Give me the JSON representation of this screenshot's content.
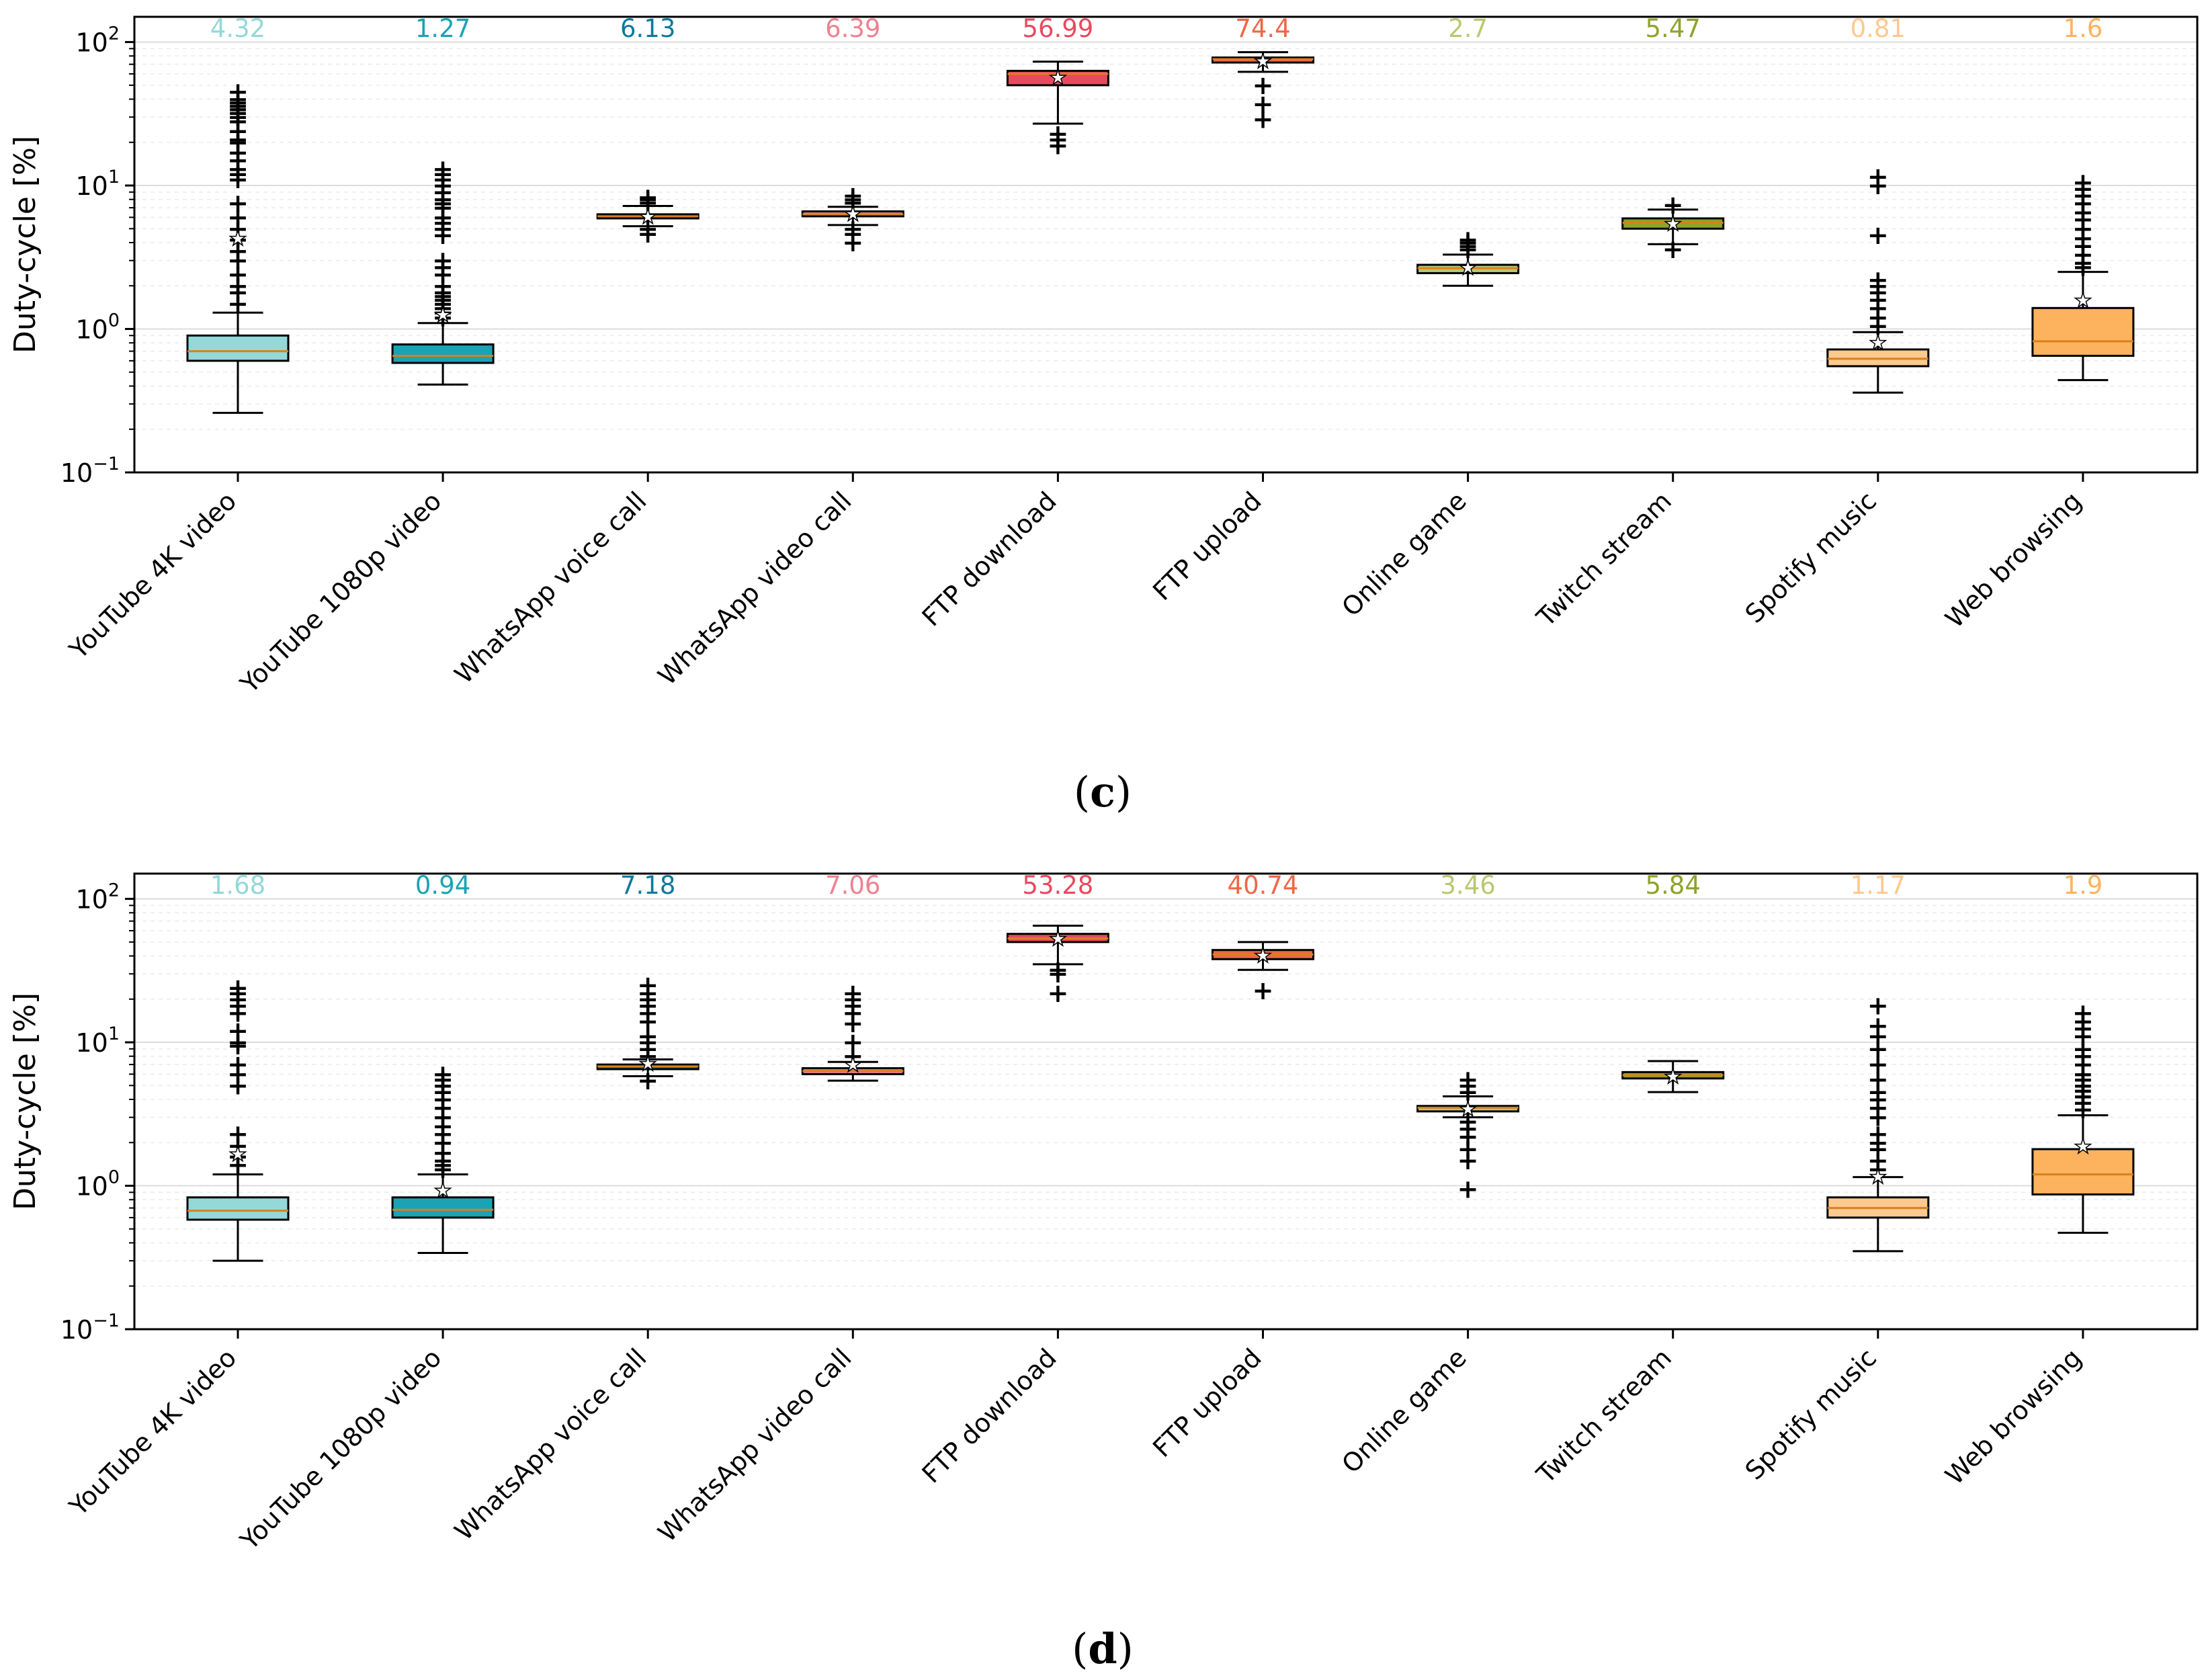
{
  "figure": {
    "panels": [
      "c",
      "d"
    ]
  },
  "chart_data": [
    {
      "type": "boxplot",
      "panel_caption": "(c)",
      "panel_letter": "c",
      "ylabel": "Duty-cycle [%]",
      "yscale": "log",
      "ylim": [
        0.1,
        150
      ],
      "ytick_labels": [
        {
          "base": "10",
          "exp": "−1",
          "value": 0.1
        },
        {
          "base": "10",
          "exp": "0",
          "value": 1
        },
        {
          "base": "10",
          "exp": "1",
          "value": 10
        },
        {
          "base": "10",
          "exp": "2",
          "value": 100
        }
      ],
      "grid": true,
      "categories": [
        "YouTube 4K video",
        "YouTube 1080p video",
        "WhatsApp voice call",
        "WhatsApp video call",
        "FTP download",
        "FTP upload",
        "Online game",
        "Twitch stream",
        "Spotify music",
        "Web browsing"
      ],
      "colors": [
        "#94d8d8",
        "#1aa3b5",
        "#0b7a9d",
        "#f08090",
        "#e9495e",
        "#f06646",
        "#bac771",
        "#8ea32a",
        "#fdc98f",
        "#fdb25e"
      ],
      "mean_labels": [
        "4.32",
        "1.27",
        "6.13",
        "6.39",
        "56.99",
        "74.4",
        "2.7",
        "5.47",
        "0.81",
        "1.6"
      ],
      "boxes": [
        {
          "whislo": 0.26,
          "q1": 0.6,
          "med": 0.7,
          "q3": 0.9,
          "whishi": 1.3,
          "mean": 4.32,
          "fliers": [
            1.5,
            1.8,
            2.0,
            2.4,
            3.0,
            3.5,
            4.2,
            5.0,
            6.0,
            7.5,
            11,
            12,
            13,
            15,
            17,
            20,
            21,
            24,
            28,
            30,
            32,
            34,
            36,
            38,
            40,
            45
          ]
        },
        {
          "whislo": 0.41,
          "q1": 0.58,
          "med": 0.65,
          "q3": 0.78,
          "whishi": 1.1,
          "mean": 1.27,
          "fliers": [
            1.2,
            1.3,
            1.4,
            1.5,
            1.6,
            1.7,
            1.8,
            2.0,
            2.4,
            2.7,
            3.0,
            4.5,
            5.0,
            5.5,
            6.0,
            7.0,
            7.5,
            8.0,
            9.0,
            10,
            11,
            12,
            13
          ]
        },
        {
          "whislo": 5.2,
          "q1": 5.9,
          "med": 6.1,
          "q3": 6.3,
          "whishi": 7.2,
          "mean": 6.13,
          "fliers": [
            4.6,
            5.0,
            7.6,
            8.0,
            8.3
          ]
        },
        {
          "whislo": 5.3,
          "q1": 6.1,
          "med": 6.3,
          "q3": 6.6,
          "whishi": 7.1,
          "mean": 6.39,
          "fliers": [
            4.0,
            4.6,
            5.0,
            7.6,
            8.0,
            8.5
          ]
        },
        {
          "whislo": 27,
          "q1": 50,
          "med": 60,
          "q3": 63,
          "whishi": 73,
          "mean": 56.99,
          "fliers": [
            19,
            21,
            23
          ]
        },
        {
          "whislo": 62,
          "q1": 72,
          "med": 76,
          "q3": 78,
          "whishi": 85,
          "mean": 74.4,
          "fliers": [
            29,
            37,
            50
          ]
        },
        {
          "whislo": 2.0,
          "q1": 2.45,
          "med": 2.65,
          "q3": 2.8,
          "whishi": 3.3,
          "mean": 2.7,
          "fliers": [
            3.6,
            3.8,
            4.0,
            4.2
          ]
        },
        {
          "whislo": 3.9,
          "q1": 5.0,
          "med": 5.5,
          "q3": 5.9,
          "whishi": 6.8,
          "mean": 5.47,
          "fliers": [
            3.6,
            7.3
          ]
        },
        {
          "whislo": 0.36,
          "q1": 0.55,
          "med": 0.62,
          "q3": 0.72,
          "whishi": 0.95,
          "mean": 0.81,
          "fliers": [
            1.05,
            1.2,
            1.4,
            1.6,
            1.8,
            2.0,
            2.2,
            4.5,
            10,
            11.5
          ]
        },
        {
          "whislo": 0.44,
          "q1": 0.65,
          "med": 0.82,
          "q3": 1.4,
          "whishi": 2.5,
          "mean": 1.6,
          "fliers": [
            2.7,
            2.9,
            3.3,
            3.8,
            4.3,
            5.0,
            5.8,
            6.5,
            7.5,
            8.5,
            9.5,
            10.5
          ]
        }
      ]
    },
    {
      "type": "boxplot",
      "panel_caption": "(d)",
      "panel_letter": "d",
      "ylabel": "Duty-cycle [%]",
      "yscale": "log",
      "ylim": [
        0.1,
        150
      ],
      "ytick_labels": [
        {
          "base": "10",
          "exp": "−1",
          "value": 0.1
        },
        {
          "base": "10",
          "exp": "0",
          "value": 1
        },
        {
          "base": "10",
          "exp": "1",
          "value": 10
        },
        {
          "base": "10",
          "exp": "2",
          "value": 100
        }
      ],
      "grid": true,
      "categories": [
        "YouTube 4K video",
        "YouTube 1080p video",
        "WhatsApp voice call",
        "WhatsApp video call",
        "FTP download",
        "FTP upload",
        "Online game",
        "Twitch stream",
        "Spotify music",
        "Web browsing"
      ],
      "colors": [
        "#94d8d8",
        "#1aa3b5",
        "#0b7a9d",
        "#f08090",
        "#e9495e",
        "#f06646",
        "#bac771",
        "#8ea32a",
        "#fdc98f",
        "#fdb25e"
      ],
      "mean_labels": [
        "1.68",
        "0.94",
        "7.18",
        "7.06",
        "53.28",
        "40.74",
        "3.46",
        "5.84",
        "1.17",
        "1.9"
      ],
      "boxes": [
        {
          "whislo": 0.3,
          "q1": 0.58,
          "med": 0.67,
          "q3": 0.83,
          "whishi": 1.2,
          "mean": 1.68,
          "fliers": [
            1.4,
            1.6,
            1.9,
            2.3,
            5.0,
            6.0,
            7.0,
            9.5,
            10,
            12,
            16,
            18,
            20,
            22,
            24
          ]
        },
        {
          "whislo": 0.34,
          "q1": 0.6,
          "med": 0.68,
          "q3": 0.83,
          "whishi": 1.2,
          "mean": 0.94,
          "fliers": [
            1.3,
            1.4,
            1.5,
            1.7,
            2.0,
            2.3,
            2.6,
            3.0,
            3.5,
            4.0,
            4.5,
            5.0,
            5.5,
            6.0
          ]
        },
        {
          "whislo": 5.8,
          "q1": 6.5,
          "med": 6.8,
          "q3": 7.0,
          "whishi": 7.6,
          "mean": 7.18,
          "fliers": [
            5.4,
            8.0,
            9.0,
            10,
            11,
            14,
            16,
            18,
            20,
            22,
            25
          ]
        },
        {
          "whislo": 5.4,
          "q1": 6.0,
          "med": 6.3,
          "q3": 6.6,
          "whishi": 7.3,
          "mean": 7.06,
          "fliers": [
            8.0,
            10,
            13.5,
            16,
            18,
            20,
            22
          ]
        },
        {
          "whislo": 35,
          "q1": 50,
          "med": 53,
          "q3": 57,
          "whishi": 65,
          "mean": 53.28,
          "fliers": [
            22,
            30,
            32
          ]
        },
        {
          "whislo": 32,
          "q1": 38,
          "med": 41,
          "q3": 44,
          "whishi": 50,
          "mean": 40.74,
          "fliers": [
            23
          ]
        },
        {
          "whislo": 3.0,
          "q1": 3.3,
          "med": 3.5,
          "q3": 3.6,
          "whishi": 4.2,
          "mean": 3.46,
          "fliers": [
            0.95,
            1.5,
            1.8,
            2.2,
            2.5,
            2.8,
            4.5,
            5.0,
            5.5
          ]
        },
        {
          "whislo": 4.5,
          "q1": 5.6,
          "med": 5.9,
          "q3": 6.2,
          "whishi": 7.4,
          "mean": 5.84,
          "fliers": []
        },
        {
          "whislo": 0.35,
          "q1": 0.6,
          "med": 0.7,
          "q3": 0.83,
          "whishi": 1.15,
          "mean": 1.17,
          "fliers": [
            1.3,
            1.5,
            1.8,
            2.0,
            2.3,
            3.0,
            3.5,
            4.0,
            4.5,
            5.5,
            7.0,
            9.0,
            11,
            13,
            18
          ]
        },
        {
          "whislo": 0.47,
          "q1": 0.87,
          "med": 1.2,
          "q3": 1.8,
          "whishi": 3.1,
          "mean": 1.9,
          "fliers": [
            3.4,
            3.8,
            4.2,
            4.6,
            5.0,
            5.5,
            6.0,
            7.0,
            8.0,
            9.0,
            11,
            12.5,
            14,
            16
          ]
        }
      ]
    }
  ]
}
